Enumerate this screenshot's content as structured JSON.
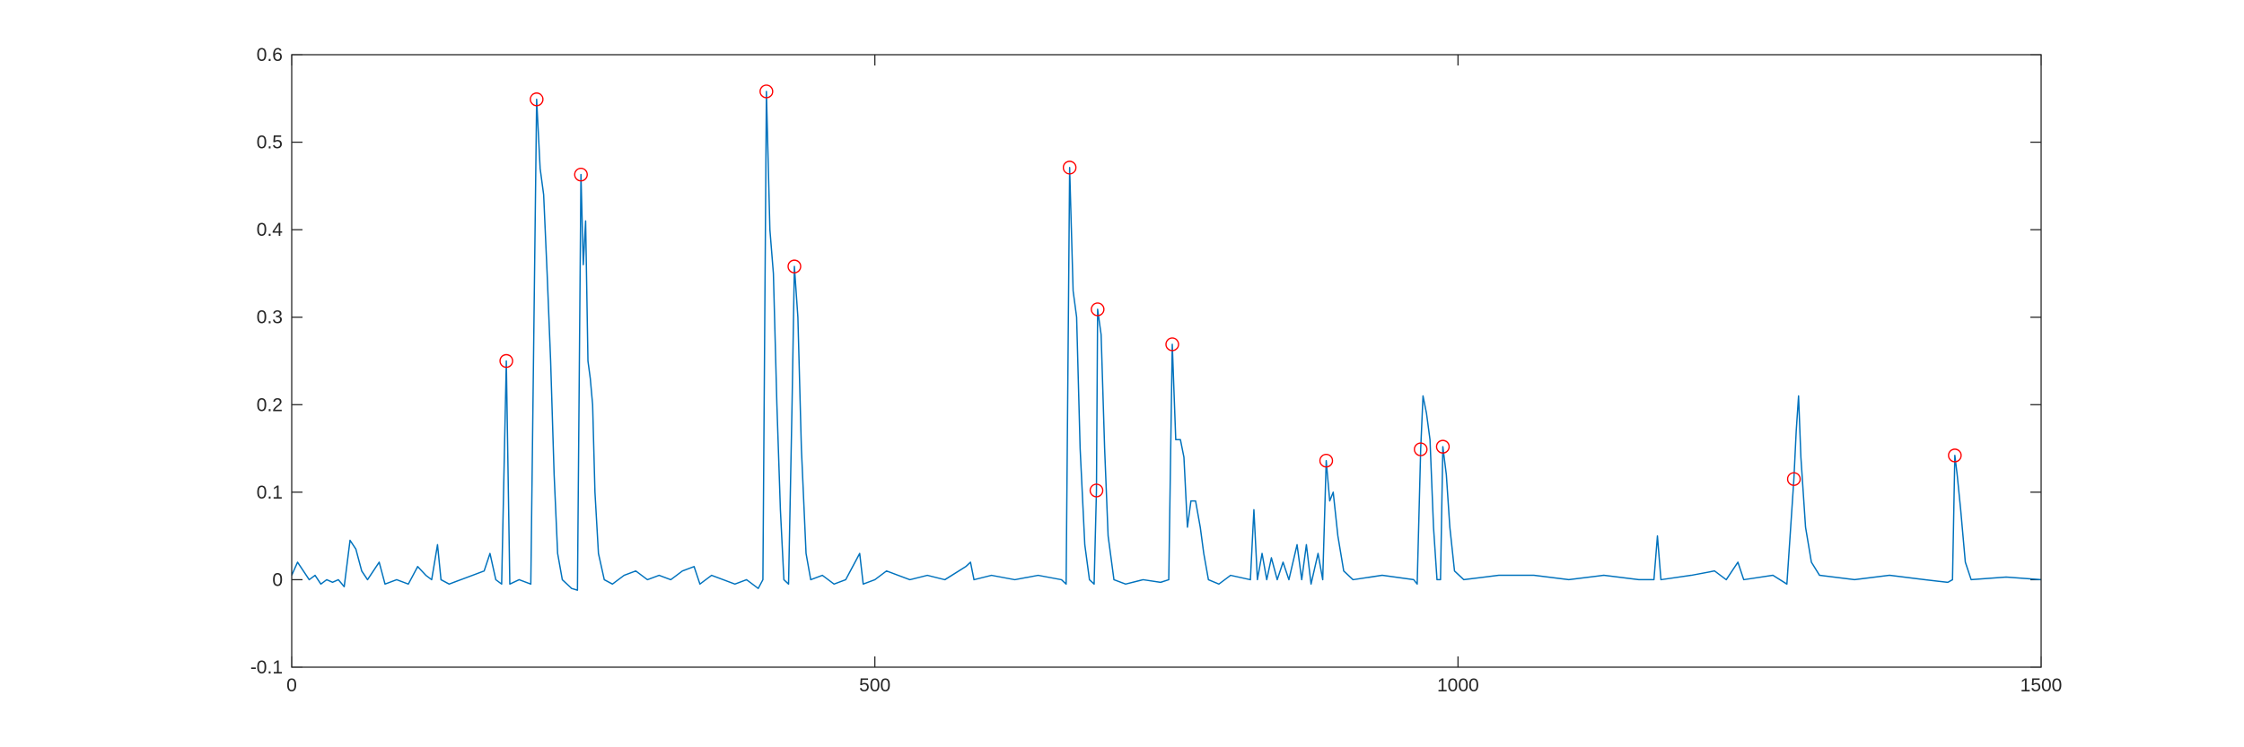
{
  "chart_data": {
    "type": "line",
    "xlim": [
      0,
      1500
    ],
    "xticks": [
      0,
      500,
      1000,
      1500
    ],
    "ylim": [
      -0.1,
      0.6
    ],
    "yticks": [
      -0.1,
      0,
      0.1,
      0.2,
      0.3,
      0.4,
      0.5,
      0.6
    ],
    "grid": false,
    "series": [
      {
        "color": "#0072bd",
        "marker": "none",
        "x": [
          0,
          5,
          10,
          15,
          20,
          25,
          30,
          35,
          40,
          45,
          50,
          55,
          60,
          65,
          70,
          75,
          80,
          90,
          100,
          108,
          115,
          120,
          125,
          128,
          135,
          145,
          155,
          165,
          170,
          175,
          180,
          184,
          187,
          195,
          205,
          210,
          213,
          216,
          219,
          222,
          225,
          228,
          232,
          240,
          245,
          248,
          250,
          252,
          254,
          256,
          258,
          260,
          263,
          268,
          275,
          285,
          295,
          305,
          315,
          325,
          335,
          345,
          350,
          360,
          370,
          380,
          390,
          400,
          404,
          407,
          410,
          413,
          416,
          419,
          422,
          426,
          429,
          431,
          434,
          437,
          441,
          445,
          455,
          465,
          475,
          487,
          490,
          500,
          510,
          520,
          530,
          545,
          560,
          578,
          582,
          585,
          600,
          620,
          640,
          660,
          664,
          667,
          670,
          673,
          676,
          680,
          684,
          688,
          690,
          691,
          694,
          697,
          700,
          705,
          715,
          730,
          745,
          752,
          755,
          758,
          762,
          765,
          768,
          771,
          775,
          779,
          782,
          786,
          795,
          805,
          822,
          825,
          828,
          832,
          836,
          840,
          845,
          850,
          855,
          862,
          866,
          870,
          874,
          880,
          884,
          887,
          890,
          893,
          897,
          902,
          910,
          935,
          962,
          965,
          968,
          970,
          973,
          976,
          979,
          982,
          985,
          987,
          990,
          993,
          997,
          1005,
          1035,
          1065,
          1095,
          1125,
          1155,
          1168,
          1171,
          1174,
          1200,
          1220,
          1230,
          1240,
          1245,
          1270,
          1282,
          1288,
          1290,
          1292,
          1294,
          1298,
          1303,
          1310,
          1340,
          1370,
          1400,
          1420,
          1424,
          1426,
          1428,
          1431,
          1435,
          1440,
          1470,
          1500
        ],
        "values": [
          0.005,
          0.02,
          0.01,
          0,
          0.005,
          -0.005,
          0,
          -0.003,
          0,
          -0.008,
          0.045,
          0.035,
          0.01,
          0,
          0.01,
          0.02,
          -0.005,
          0,
          -0.005,
          0.015,
          0.005,
          0,
          0.04,
          0,
          -0.005,
          0,
          0.005,
          0.01,
          0.03,
          0,
          -0.005,
          0.25,
          -0.005,
          0,
          -0.005,
          0.549,
          0.47,
          0.44,
          0.35,
          0.25,
          0.12,
          0.03,
          0,
          -0.01,
          -0.012,
          0.463,
          0.36,
          0.41,
          0.25,
          0.23,
          0.2,
          0.1,
          0.03,
          0,
          -0.005,
          0.005,
          0.01,
          0,
          0.005,
          0,
          0.01,
          0.015,
          -0.005,
          0.005,
          0,
          -0.005,
          0,
          -0.01,
          0,
          0.558,
          0.4,
          0.35,
          0.2,
          0.08,
          0,
          -0.005,
          0.2,
          0.358,
          0.3,
          0.15,
          0.03,
          0,
          0.005,
          -0.005,
          0,
          0.03,
          -0.005,
          0,
          0.01,
          0.005,
          0,
          0.005,
          0,
          0.015,
          0.02,
          0,
          0.005,
          0,
          0.005,
          0,
          -0.005,
          0.471,
          0.33,
          0.3,
          0.15,
          0.04,
          0,
          -0.005,
          0.102,
          0.309,
          0.28,
          0.15,
          0.05,
          0,
          -0.005,
          0,
          -0.003,
          0,
          0.269,
          0.16,
          0.16,
          0.14,
          0.06,
          0.09,
          0.09,
          0.06,
          0.03,
          0,
          -0.005,
          0.005,
          0,
          0.08,
          0,
          0.03,
          0,
          0.025,
          0,
          0.02,
          0,
          0.04,
          0,
          0.04,
          -0.005,
          0.03,
          0,
          0.136,
          0.09,
          0.1,
          0.05,
          0.01,
          0,
          0.005,
          0,
          -0.005,
          0.149,
          0.21,
          0.19,
          0.16,
          0.06,
          0,
          0,
          0.152,
          0.12,
          0.06,
          0.01,
          0,
          0.005,
          0.005,
          0,
          0.005,
          0,
          0,
          0.05,
          0,
          0.005,
          0.01,
          0,
          0.02,
          0,
          0.005,
          -0.005,
          0.115,
          0.17,
          0.21,
          0.14,
          0.06,
          0.02,
          0.005,
          0,
          0.005,
          0,
          -0.003,
          0,
          0.142,
          0.12,
          0.08,
          0.02,
          0,
          0.003,
          0
        ]
      },
      {
        "color": "#ff0000",
        "marker": "circle",
        "x": [
          184,
          210,
          248,
          407,
          431,
          667,
          691,
          690,
          755,
          887,
          968,
          987,
          1288,
          1426
        ],
        "values": [
          0.25,
          0.549,
          0.463,
          0.558,
          0.358,
          0.471,
          0.309,
          0.102,
          0.269,
          0.136,
          0.149,
          0.152,
          0.115,
          0.142
        ]
      }
    ]
  }
}
